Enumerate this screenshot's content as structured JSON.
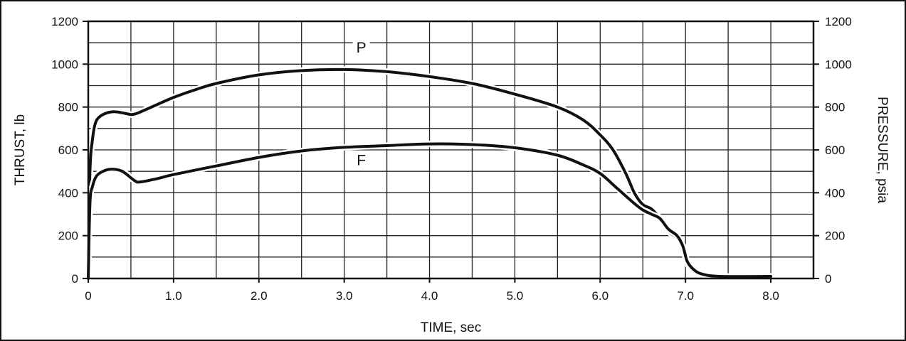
{
  "chart_data": {
    "type": "line",
    "xlabel": "TIME, sec",
    "ylabel_left": "THRUST, lb",
    "ylabel_right": "PRESSURE, psia",
    "xlim": [
      0,
      8.5
    ],
    "ylim": [
      0,
      1200
    ],
    "x_ticks": [
      {
        "value": 0,
        "label": "0"
      },
      {
        "value": 1,
        "label": "1.0"
      },
      {
        "value": 2,
        "label": "2.0"
      },
      {
        "value": 3,
        "label": "3.0"
      },
      {
        "value": 4,
        "label": "4.0"
      },
      {
        "value": 5,
        "label": "5.0"
      },
      {
        "value": 6,
        "label": "6.0"
      },
      {
        "value": 7,
        "label": "7.0"
      },
      {
        "value": 8,
        "label": "8.0"
      }
    ],
    "y_ticks_left": [
      {
        "value": 0,
        "label": "0"
      },
      {
        "value": 200,
        "label": "200"
      },
      {
        "value": 400,
        "label": "400"
      },
      {
        "value": 600,
        "label": "600"
      },
      {
        "value": 800,
        "label": "800"
      },
      {
        "value": 1000,
        "label": "1000"
      },
      {
        "value": 1200,
        "label": "1200"
      }
    ],
    "y_ticks_right": [
      {
        "value": 0,
        "label": "0"
      },
      {
        "value": 200,
        "label": "200"
      },
      {
        "value": 400,
        "label": "400"
      },
      {
        "value": 600,
        "label": "600"
      },
      {
        "value": 800,
        "label": "800"
      },
      {
        "value": 1000,
        "label": "1000"
      },
      {
        "value": 1200,
        "label": "1200"
      }
    ],
    "grid": true,
    "series": [
      {
        "name": "P",
        "label_at": [
          3.2,
          1060
        ],
        "points": [
          [
            0.0,
            0
          ],
          [
            0.02,
            500
          ],
          [
            0.05,
            650
          ],
          [
            0.08,
            720
          ],
          [
            0.12,
            750
          ],
          [
            0.2,
            770
          ],
          [
            0.3,
            778
          ],
          [
            0.4,
            773
          ],
          [
            0.5,
            765
          ],
          [
            0.55,
            768
          ],
          [
            0.6,
            775
          ],
          [
            0.8,
            810
          ],
          [
            1.0,
            845
          ],
          [
            1.25,
            880
          ],
          [
            1.5,
            910
          ],
          [
            2.0,
            950
          ],
          [
            2.5,
            970
          ],
          [
            3.0,
            975
          ],
          [
            3.5,
            965
          ],
          [
            4.0,
            942
          ],
          [
            4.5,
            910
          ],
          [
            5.0,
            860
          ],
          [
            5.5,
            800
          ],
          [
            5.8,
            740
          ],
          [
            6.0,
            670
          ],
          [
            6.15,
            600
          ],
          [
            6.3,
            490
          ],
          [
            6.4,
            400
          ],
          [
            6.5,
            345
          ],
          [
            6.6,
            325
          ],
          [
            6.7,
            280
          ],
          [
            6.8,
            220
          ],
          [
            6.9,
            190
          ],
          [
            6.97,
            150
          ],
          [
            7.02,
            70
          ],
          [
            7.1,
            40
          ],
          [
            7.2,
            20
          ],
          [
            7.4,
            10
          ],
          [
            8.0,
            10
          ]
        ]
      },
      {
        "name": "F",
        "label_at": [
          3.2,
          535
        ],
        "points": [
          [
            0.0,
            0
          ],
          [
            0.02,
            350
          ],
          [
            0.05,
            430
          ],
          [
            0.1,
            480
          ],
          [
            0.2,
            505
          ],
          [
            0.3,
            510
          ],
          [
            0.4,
            500
          ],
          [
            0.5,
            470
          ],
          [
            0.55,
            455
          ],
          [
            0.6,
            450
          ],
          [
            0.8,
            465
          ],
          [
            1.0,
            485
          ],
          [
            1.5,
            525
          ],
          [
            2.0,
            565
          ],
          [
            2.5,
            595
          ],
          [
            3.0,
            612
          ],
          [
            3.5,
            620
          ],
          [
            4.0,
            628
          ],
          [
            4.5,
            625
          ],
          [
            5.0,
            610
          ],
          [
            5.5,
            575
          ],
          [
            5.8,
            530
          ],
          [
            6.0,
            490
          ],
          [
            6.2,
            420
          ],
          [
            6.4,
            350
          ],
          [
            6.5,
            320
          ],
          [
            6.6,
            300
          ],
          [
            6.7,
            280
          ],
          [
            6.8,
            230
          ],
          [
            6.9,
            200
          ],
          [
            6.97,
            150
          ],
          [
            7.02,
            80
          ],
          [
            7.1,
            40
          ],
          [
            7.2,
            20
          ],
          [
            7.4,
            10
          ],
          [
            8.0,
            10
          ]
        ]
      }
    ]
  }
}
